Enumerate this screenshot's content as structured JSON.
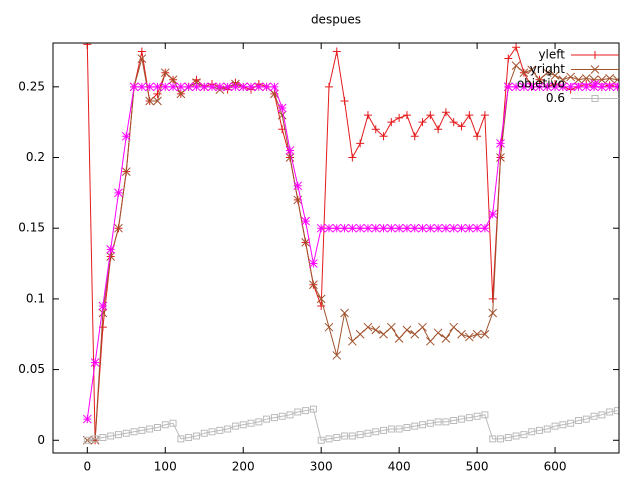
{
  "chart_data": {
    "type": "line",
    "title": "despues",
    "x": [
      0,
      10,
      20,
      30,
      40,
      50,
      60,
      70,
      80,
      90,
      100,
      110,
      120,
      130,
      140,
      150,
      160,
      170,
      180,
      190,
      200,
      210,
      220,
      230,
      240,
      250,
      260,
      270,
      280,
      290,
      300,
      310,
      320,
      330,
      340,
      350,
      360,
      370,
      380,
      390,
      400,
      410,
      420,
      430,
      440,
      450,
      460,
      470,
      480,
      490,
      500,
      510,
      520,
      530,
      540,
      550,
      560,
      570,
      580,
      590,
      600,
      610,
      620,
      630,
      640,
      650,
      660,
      670,
      680
    ],
    "series": [
      {
        "name": "yleft",
        "color": "#e41a1c",
        "marker": "plus",
        "values": [
          0.28,
          0,
          0.08,
          0.13,
          0.15,
          0.19,
          0.25,
          0.275,
          0.24,
          0.245,
          0.26,
          0.255,
          0.245,
          0.25,
          0.255,
          0.25,
          0.252,
          0.25,
          0.248,
          0.253,
          0.25,
          0.248,
          0.252,
          0.25,
          0.245,
          0.22,
          0.2,
          0.17,
          0.14,
          0.11,
          0.095,
          0.25,
          0.275,
          0.24,
          0.2,
          0.21,
          0.23,
          0.22,
          0.215,
          0.225,
          0.228,
          0.23,
          0.215,
          0.225,
          0.23,
          0.22,
          0.232,
          0.225,
          0.222,
          0.23,
          0.215,
          0.23,
          0.1,
          0.2,
          0.27,
          0.278,
          0.26,
          0.25,
          0.255,
          0.25,
          0.252,
          0.25,
          0.248,
          0.25,
          0.252,
          0.25,
          0.25,
          0.251,
          0.25
        ]
      },
      {
        "name": "yright",
        "color": "#a0522d",
        "marker": "cross",
        "values": [
          0,
          0,
          0.09,
          0.13,
          0.15,
          0.19,
          0.25,
          0.27,
          0.24,
          0.24,
          0.26,
          0.255,
          0.245,
          0.25,
          0.253,
          0.25,
          0.25,
          0.248,
          0.25,
          0.252,
          0.25,
          0.25,
          0.25,
          0.25,
          0.245,
          0.23,
          0.2,
          0.17,
          0.14,
          0.11,
          0.1,
          0.08,
          0.06,
          0.09,
          0.07,
          0.075,
          0.08,
          0.078,
          0.075,
          0.08,
          0.072,
          0.078,
          0.075,
          0.08,
          0.07,
          0.076,
          0.072,
          0.08,
          0.075,
          0.073,
          0.075,
          0.075,
          0.09,
          0.2,
          0.25,
          0.265,
          0.26,
          0.262,
          0.255,
          0.26,
          0.258,
          0.255,
          0.257,
          0.255,
          0.256,
          0.255,
          0.255,
          0.256,
          0.255
        ]
      },
      {
        "name": "objetivo",
        "color": "#ff00ff",
        "marker": "star",
        "values": [
          0.015,
          0.055,
          0.095,
          0.135,
          0.175,
          0.215,
          0.25,
          0.25,
          0.25,
          0.25,
          0.25,
          0.25,
          0.25,
          0.25,
          0.25,
          0.25,
          0.25,
          0.25,
          0.25,
          0.25,
          0.25,
          0.25,
          0.25,
          0.25,
          0.25,
          0.235,
          0.205,
          0.18,
          0.155,
          0.125,
          0.15,
          0.15,
          0.15,
          0.15,
          0.15,
          0.15,
          0.15,
          0.15,
          0.15,
          0.15,
          0.15,
          0.15,
          0.15,
          0.15,
          0.15,
          0.15,
          0.15,
          0.15,
          0.15,
          0.15,
          0.15,
          0.15,
          0.16,
          0.21,
          0.25,
          0.25,
          0.25,
          0.25,
          0.25,
          0.25,
          0.25,
          0.25,
          0.25,
          0.25,
          0.25,
          0.25,
          0.25,
          0.25,
          0.25
        ]
      },
      {
        "name": "0.6",
        "color": "#bbbbbb",
        "marker": "square",
        "values": [
          0,
          0.001,
          0.002,
          0.003,
          0.004,
          0.005,
          0.006,
          0.007,
          0.008,
          0.009,
          0.011,
          0.012,
          0.001,
          0.002,
          0.003,
          0.005,
          0.006,
          0.007,
          0.008,
          0.01,
          0.011,
          0.012,
          0.013,
          0.015,
          0.016,
          0.017,
          0.018,
          0.02,
          0.021,
          0.022,
          0,
          0.001,
          0.002,
          0.003,
          0.003,
          0.004,
          0.005,
          0.006,
          0.007,
          0.008,
          0.008,
          0.009,
          0.01,
          0.011,
          0.012,
          0.013,
          0.013,
          0.014,
          0.015,
          0.016,
          0.017,
          0.018,
          0.001,
          0.001,
          0.002,
          0.003,
          0.004,
          0.006,
          0.007,
          0.008,
          0.01,
          0.011,
          0.012,
          0.014,
          0.015,
          0.017,
          0.018,
          0.02,
          0.021
        ]
      }
    ],
    "xlim": [
      -44,
      682
    ],
    "ylim": [
      -0.009,
      0.281
    ],
    "xticks": [
      0,
      100,
      200,
      300,
      400,
      500,
      600
    ],
    "yticks": [
      0,
      0.05,
      0.1,
      0.15,
      0.2,
      0.25
    ],
    "legend": "top-right"
  }
}
